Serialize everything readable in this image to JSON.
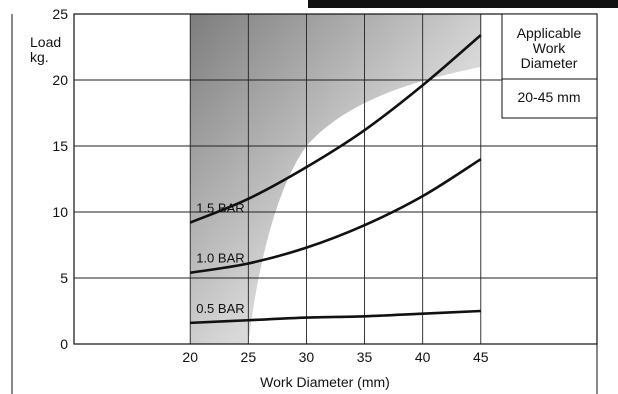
{
  "chart_data": {
    "type": "line",
    "ylabel": "Load\nkg.",
    "xlabel": "Work Diameter (mm)",
    "xlim": [
      10,
      55
    ],
    "ylim": [
      0,
      25
    ],
    "x_ticks": [
      20,
      25,
      30,
      35,
      40,
      45
    ],
    "y_ticks": [
      0,
      5,
      10,
      15,
      20,
      25
    ],
    "grid": true,
    "series": [
      {
        "name": "1.5 BAR",
        "x": [
          20,
          25,
          30,
          35,
          40,
          45
        ],
        "y": [
          9.2,
          11.0,
          13.4,
          16.2,
          19.6,
          23.4
        ]
      },
      {
        "name": "1.0 BAR",
        "x": [
          20,
          25,
          30,
          35,
          40,
          45
        ],
        "y": [
          5.4,
          6.1,
          7.3,
          9.0,
          11.2,
          14.0
        ]
      },
      {
        "name": "0.5 BAR",
        "x": [
          20,
          25,
          30,
          35,
          40,
          45
        ],
        "y": [
          1.6,
          1.8,
          2.0,
          2.1,
          2.3,
          2.5
        ]
      }
    ],
    "applicable_range": {
      "label": "Applicable\nWork\nDiameter",
      "range_text": "20-45 mm",
      "x": [
        20,
        45
      ]
    },
    "colors": {
      "line": "#111111",
      "grid": "#222222",
      "shade_dark": "#7f7f7f",
      "shade_light": "#ffffff"
    }
  }
}
